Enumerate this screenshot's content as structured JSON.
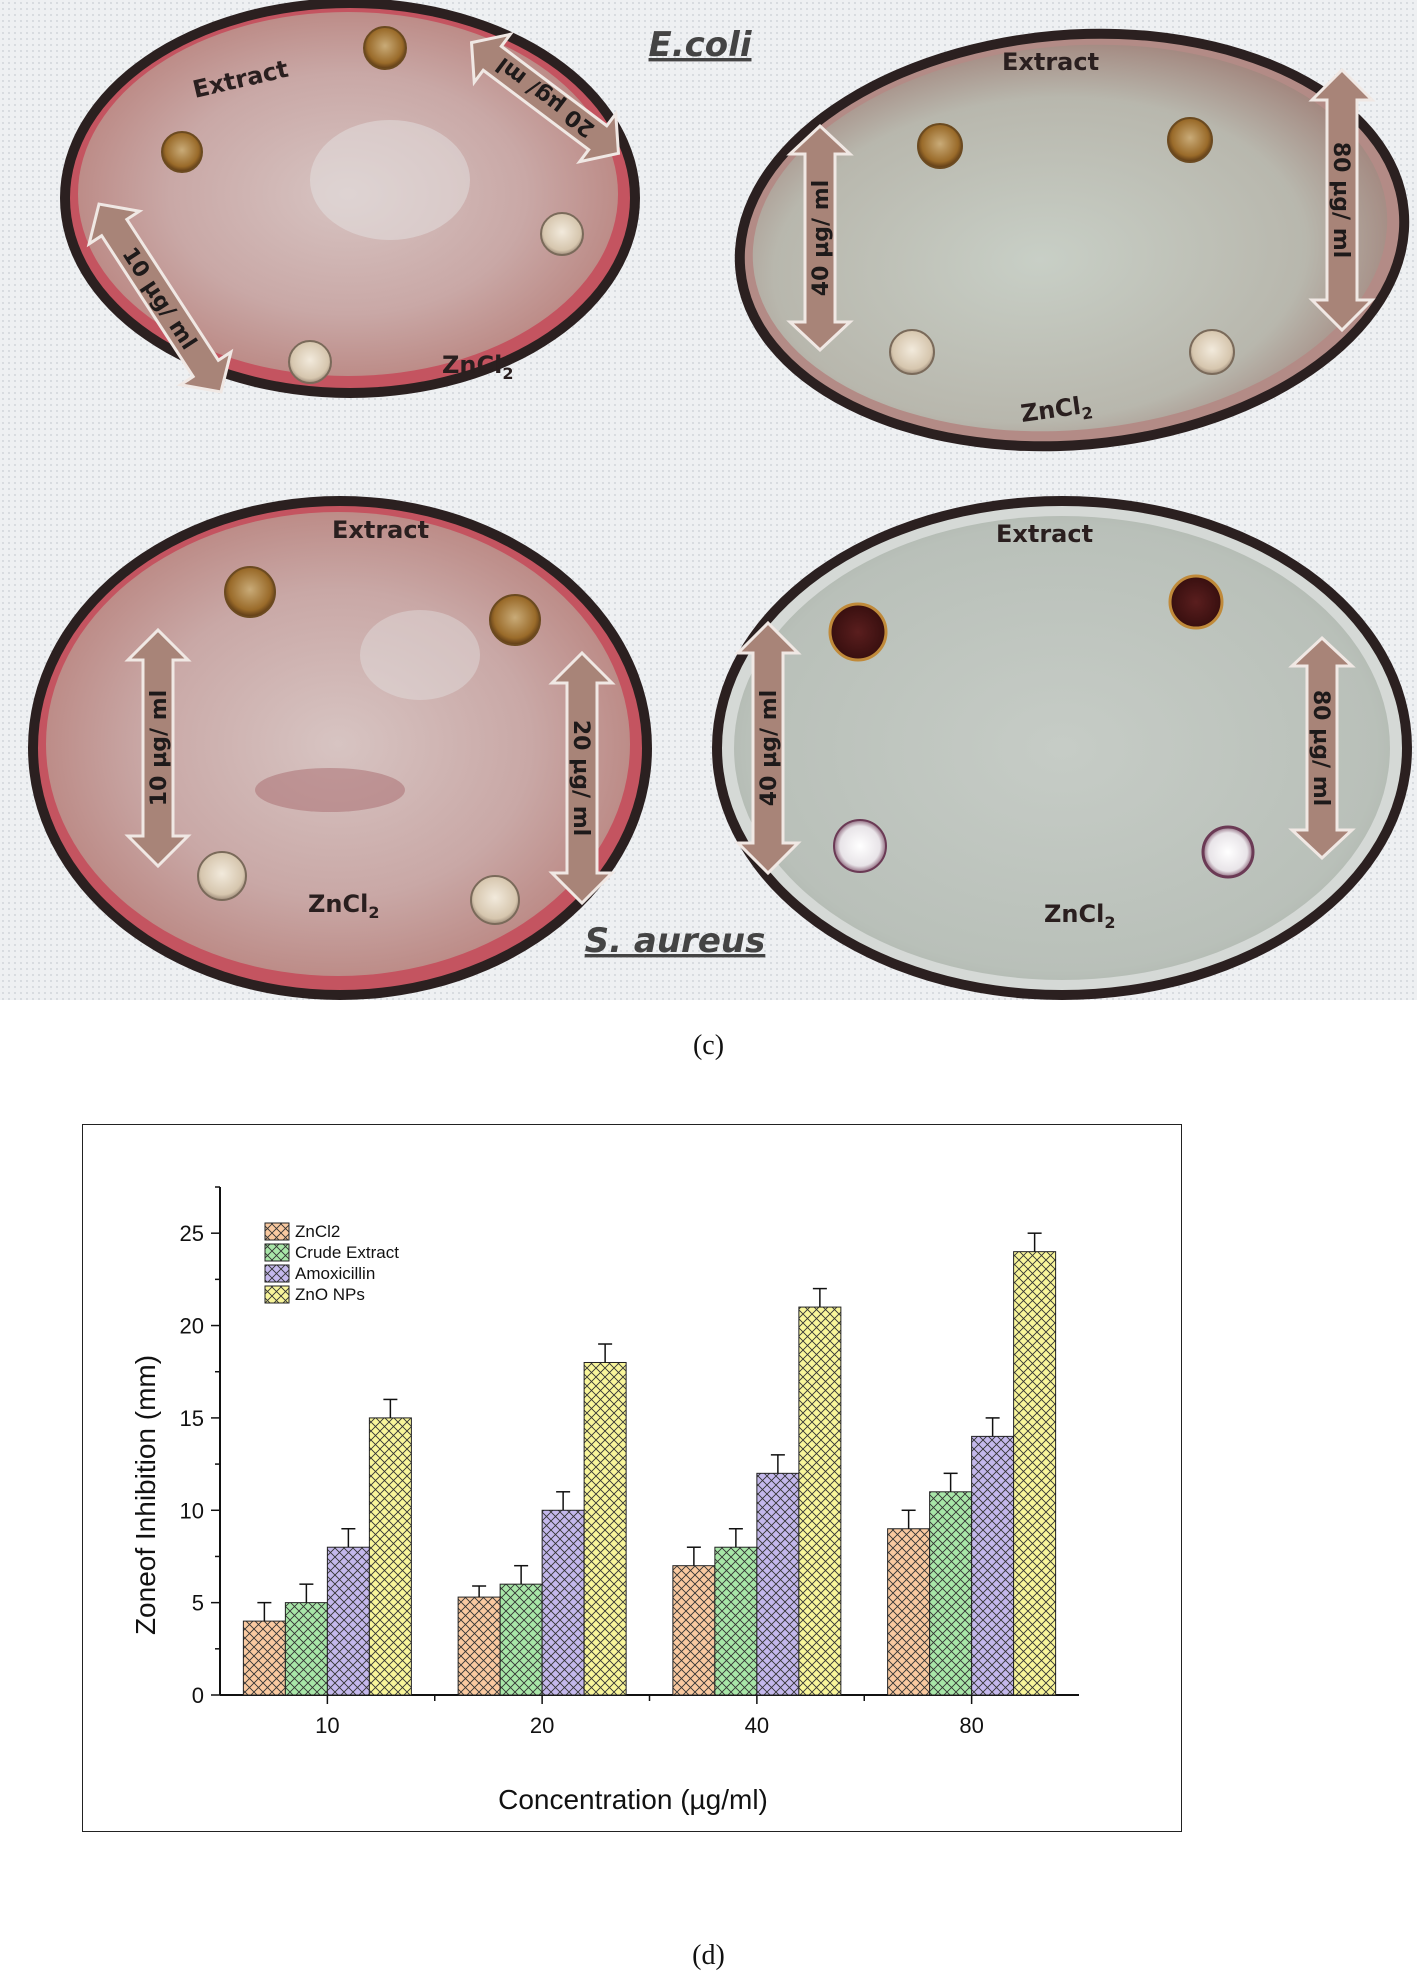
{
  "photo_panel": {
    "species_top": "E.coli",
    "species_bottom": "S. aureus",
    "extract_label": "Extract",
    "zncl2_label": "ZnCl",
    "zncl2_sub": "2",
    "conc_10": "10 µg/ ml",
    "conc_20": "20 µg/ ml",
    "conc_40": "40 µg/ ml",
    "conc_80": "80 µg/ ml",
    "label": "(c)"
  },
  "chart_label": "(d)",
  "chart_data": {
    "type": "bar",
    "xlabel": "Concentration (µg/ml)",
    "ylabel": "Zoneof Inhibition (mm)",
    "categories": [
      "10",
      "20",
      "40",
      "80"
    ],
    "ylim": [
      0,
      27.5
    ],
    "yticks": [
      0,
      5,
      10,
      15,
      20,
      25
    ],
    "legend_position": "top-left",
    "series": [
      {
        "name": "ZnCl2",
        "values": [
          4,
          5.3,
          7,
          9
        ],
        "errors": [
          1,
          0.6,
          1,
          1
        ],
        "color": "#f9c9a0"
      },
      {
        "name": "Crude Extract",
        "values": [
          5,
          6,
          8,
          11
        ],
        "errors": [
          1,
          1,
          1,
          1
        ],
        "color": "#a8e6a8"
      },
      {
        "name": "Amoxicillin",
        "values": [
          8,
          10,
          12,
          14
        ],
        "errors": [
          1,
          1,
          1,
          1
        ],
        "color": "#c4b8ec"
      },
      {
        "name": "ZnO NPs",
        "values": [
          15,
          18,
          21,
          24
        ],
        "errors": [
          1,
          1,
          1,
          1
        ],
        "color": "#f8f59a"
      }
    ]
  }
}
